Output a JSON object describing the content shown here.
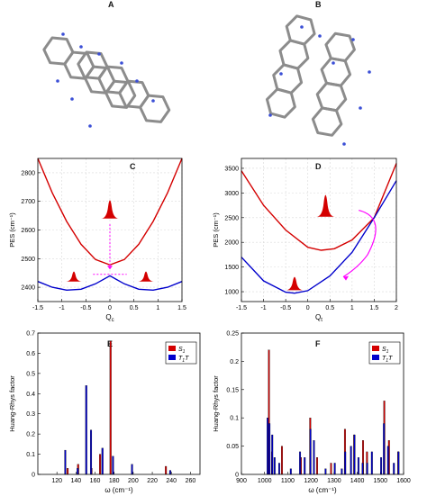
{
  "panel_labels": {
    "A": "A",
    "B": "B",
    "C": "C",
    "D": "D",
    "E": "E",
    "F": "F"
  },
  "colors": {
    "red": "#d40000",
    "blue": "#0000cc",
    "magenta": "#ff00ff",
    "grid": "#d9d9d9",
    "molecule": "#8c8c8c"
  },
  "chart_data": [
    {
      "panel": "C",
      "type": "line",
      "ylabel": "PES (cm⁻¹)",
      "xlabel": "Q",
      "xlabel_sub": "c",
      "xlim": [
        -1.5,
        1.5
      ],
      "ylim": [
        2350,
        2850
      ],
      "xticks": [
        "-1.5",
        "-1",
        "-0.5",
        "0",
        "0.5",
        "1",
        "1.5"
      ],
      "yticks": [
        "2400",
        "2500",
        "2600",
        "2700",
        "2800"
      ],
      "grid": true,
      "series": [
        {
          "color": "red",
          "x": [
            -1.5,
            -1.2,
            -0.9,
            -0.6,
            -0.3,
            0,
            0.3,
            0.6,
            0.9,
            1.2,
            1.5
          ],
          "y": [
            2850,
            2730,
            2630,
            2550,
            2497,
            2478,
            2497,
            2550,
            2630,
            2730,
            2850
          ]
        },
        {
          "color": "blue",
          "x": [
            -1.5,
            -1.2,
            -0.9,
            -0.6,
            -0.3,
            0,
            0.3,
            0.6,
            0.9,
            1.2,
            1.5
          ],
          "y": [
            2420,
            2400,
            2390,
            2393,
            2412,
            2440,
            2412,
            2393,
            2390,
            2400,
            2420
          ]
        }
      ]
    },
    {
      "panel": "D",
      "type": "line",
      "ylabel": "PES (cm⁻¹)",
      "xlabel": "Q",
      "xlabel_sub": "t",
      "xlim": [
        -1.5,
        2
      ],
      "ylim": [
        800,
        3700
      ],
      "xticks": [
        "-1.5",
        "-1",
        "-0.5",
        "0",
        "0.5",
        "1",
        "1.5",
        "2"
      ],
      "yticks": [
        "1000",
        "1500",
        "2000",
        "2500",
        "3000",
        "3500"
      ],
      "grid": true,
      "series": [
        {
          "color": "red",
          "x": [
            -1.5,
            -1,
            -0.5,
            0,
            0.3,
            0.6,
            1,
            1.5,
            2
          ],
          "y": [
            3450,
            2750,
            2250,
            1900,
            1840,
            1870,
            2050,
            2500,
            3600
          ]
        },
        {
          "color": "blue",
          "x": [
            -1.5,
            -1,
            -0.5,
            -0.3,
            0,
            0.5,
            1,
            1.5,
            2
          ],
          "y": [
            1700,
            1220,
            990,
            970,
            1020,
            1320,
            1800,
            2500,
            3250
          ]
        }
      ]
    },
    {
      "panel": "E",
      "type": "bar",
      "ylabel": "Huang-Rhys factor",
      "xlabel": "ω (cm⁻¹)",
      "xlim": [
        100,
        270
      ],
      "ylim": [
        0,
        0.7
      ],
      "xticks": [
        "120",
        "140",
        "160",
        "180",
        "200",
        "220",
        "240",
        "260"
      ],
      "yticks": [
        "0",
        "0.1",
        "0.2",
        "0.3",
        "0.4",
        "0.5",
        "0.6",
        "0.7"
      ],
      "legend": {
        "placement": "top-right",
        "entries": [
          {
            "label": "S",
            "sub": "1",
            "color": "red"
          },
          {
            "label": "T",
            "sub": "1",
            "label2": "T",
            "color": "blue"
          }
        ]
      },
      "series": [
        {
          "name": "S₁",
          "color": "red",
          "x": [
            132,
            143,
            157,
            166,
            177,
            235
          ],
          "y": [
            0.03,
            0.05,
            0.03,
            0.1,
            0.66,
            0.04
          ]
        },
        {
          "name": "T₁T",
          "color": "blue",
          "x": [
            128,
            141,
            150,
            155,
            167,
            178,
            198,
            238
          ],
          "y": [
            0.12,
            0.03,
            0.44,
            0.22,
            0.13,
            0.09,
            0.05,
            0.02
          ]
        }
      ]
    },
    {
      "panel": "F",
      "type": "bar",
      "ylabel": "Huang-Rhys factor",
      "xlabel": "ω (cm⁻¹)",
      "xlim": [
        900,
        1600
      ],
      "ylim": [
        0,
        0.25
      ],
      "xticks": [
        "900",
        "1000",
        "1100",
        "1200",
        "1300",
        "1400",
        "1500",
        "1600"
      ],
      "yticks": [
        "0",
        "0.05",
        "0.1",
        "0.15",
        "0.2",
        "0.25"
      ],
      "legend": {
        "placement": "top-right",
        "entries": [
          {
            "label": "S",
            "sub": "1",
            "color": "red"
          },
          {
            "label": "T",
            "sub": "1",
            "label2": "T",
            "color": "blue"
          }
        ]
      },
      "series": [
        {
          "name": "S₁",
          "color": "red",
          "x": [
            1022,
            1035,
            1078,
            1160,
            1200,
            1230,
            1290,
            1350,
            1390,
            1428,
            1445,
            1520,
            1540,
            1580
          ],
          "y": [
            0.22,
            0.04,
            0.05,
            0.03,
            0.1,
            0.03,
            0.02,
            0.08,
            0.07,
            0.06,
            0.04,
            0.13,
            0.06,
            0.04
          ]
        },
        {
          "name": "T₁T",
          "color": "blue",
          "x": [
            1010,
            1018,
            1030,
            1040,
            1060,
            1110,
            1150,
            1170,
            1195,
            1210,
            1260,
            1300,
            1330,
            1345,
            1370,
            1385,
            1402,
            1420,
            1440,
            1460,
            1500,
            1512,
            1530,
            1555,
            1575
          ],
          "y": [
            0.1,
            0.09,
            0.07,
            0.03,
            0.02,
            0.01,
            0.04,
            0.03,
            0.08,
            0.06,
            0.01,
            0.02,
            0.01,
            0.04,
            0.05,
            0.07,
            0.03,
            0.02,
            0.02,
            0.04,
            0.03,
            0.09,
            0.05,
            0.02,
            0.04
          ]
        }
      ]
    }
  ]
}
